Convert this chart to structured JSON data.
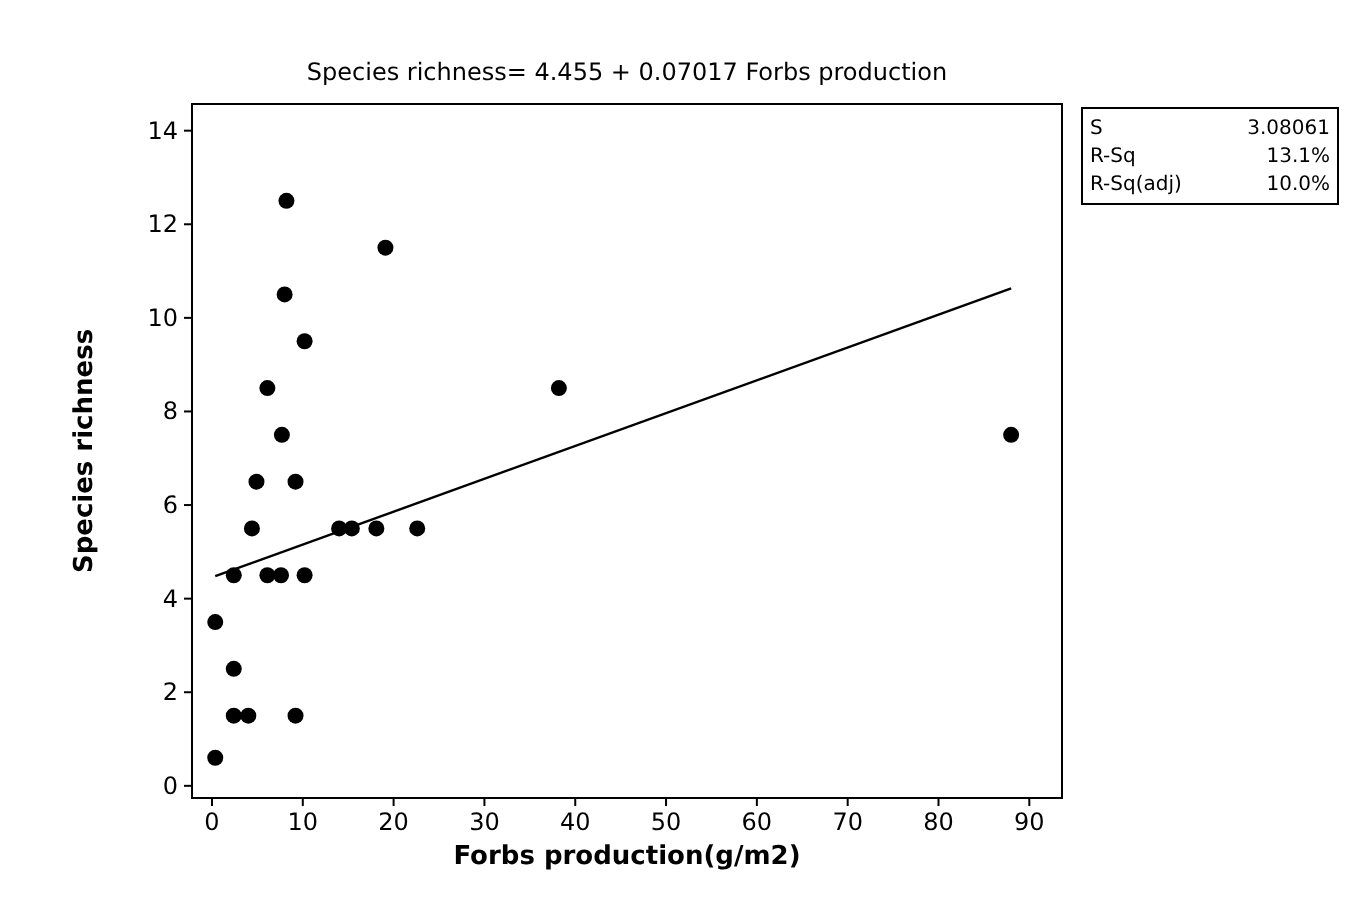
{
  "chart_data": {
    "type": "scatter",
    "title": "Species richness=  4.455 + 0.07017 Forbs production",
    "xlabel": "Forbs production(g/m2)",
    "ylabel": "Species richness",
    "xlim": [
      -2.2,
      93.6
    ],
    "ylim": [
      -0.26,
      14.57
    ],
    "xticks": [
      0,
      10,
      20,
      30,
      40,
      50,
      60,
      70,
      80,
      90
    ],
    "yticks": [
      0,
      2,
      4,
      6,
      8,
      10,
      12,
      14
    ],
    "grid": false,
    "marker": "circle",
    "series": [
      {
        "color": "#000000",
        "x": [
          0.36,
          0.36,
          2.4,
          2.4,
          4.0,
          9.2,
          2.4,
          6.1,
          7.6,
          10.2,
          4.4,
          14.0,
          15.4,
          18.1,
          22.6,
          4.9,
          9.2,
          7.7,
          6.1,
          10.2,
          8.0,
          8.2,
          19.1,
          38.2,
          88.0
        ],
        "values": [
          0.6,
          3.5,
          2.5,
          1.5,
          1.5,
          1.5,
          4.5,
          4.5,
          4.5,
          4.5,
          5.5,
          5.5,
          5.5,
          5.5,
          5.5,
          6.5,
          6.5,
          7.5,
          8.5,
          9.5,
          10.5,
          12.5,
          11.5,
          8.5,
          7.5
        ]
      },
      {
        "type": "line",
        "color": "#000000",
        "marker": "none",
        "x": [
          0.36,
          88.0
        ],
        "values": [
          4.48,
          10.63
        ]
      }
    ],
    "annotations": [
      "S",
      "3.08061",
      "R-Sq",
      "13.1%",
      "R-Sq(adj)",
      "10.0%"
    ]
  }
}
